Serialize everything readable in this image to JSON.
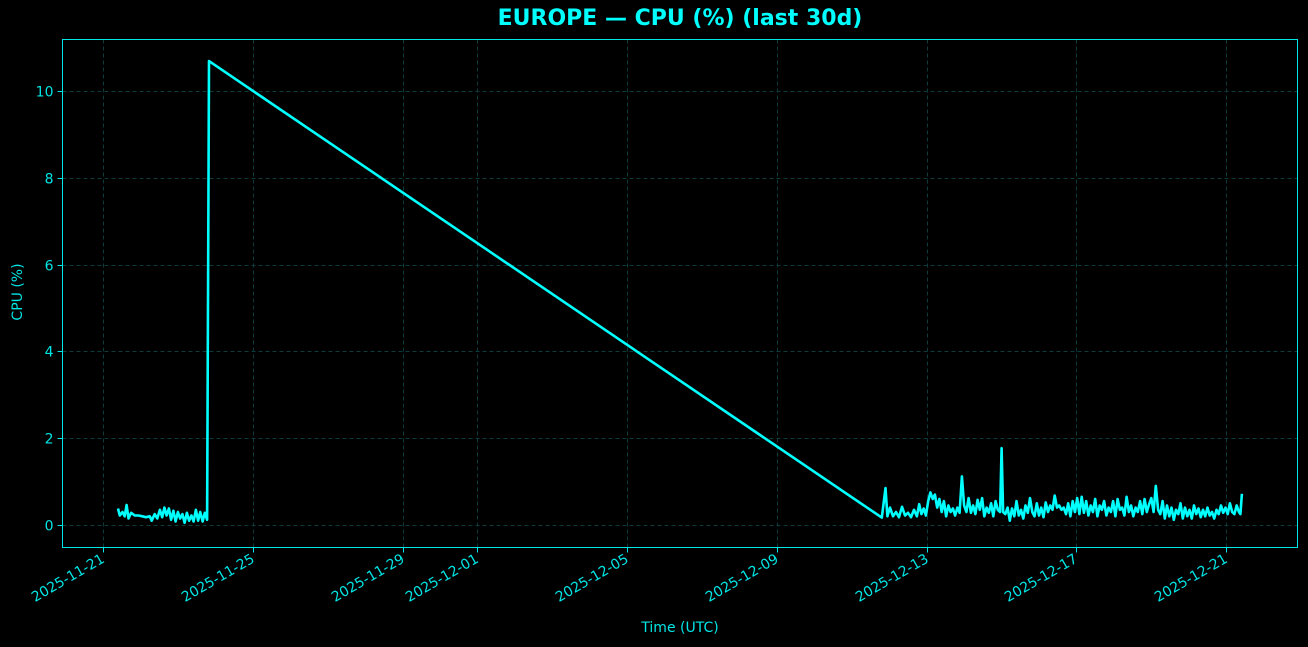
{
  "title": "EUROPE — CPU (%) (last 30d)",
  "colors": {
    "background": "#000000",
    "line": "#00ffff",
    "axis": "#00e5e5",
    "grid": "#0b3b3b"
  },
  "chart_data": {
    "type": "line",
    "title": "EUROPE — CPU (%) (last 30d)",
    "xlabel": "Time (UTC)",
    "ylabel": "CPU (%)",
    "grid": true,
    "legend": null,
    "x_ticks": [
      "2025-11-21",
      "2025-11-25",
      "2025-11-29",
      "2025-12-01",
      "2025-12-05",
      "2025-12-09",
      "2025-12-13",
      "2025-12-17",
      "2025-12-21"
    ],
    "x_tick_offsets_days": [
      0,
      4,
      8,
      10,
      14,
      18,
      22,
      26,
      30
    ],
    "y_ticks": [
      0,
      2,
      4,
      6,
      8,
      10
    ],
    "ylim": [
      -0.5,
      11.2
    ],
    "xlim_days_from_2025-11-21": [
      -1.1,
      31.3
    ],
    "series": [
      {
        "name": "CPU (%)",
        "points_day_value": [
          [
            0.4,
            0.38
          ],
          [
            0.45,
            0.22
          ],
          [
            0.52,
            0.3
          ],
          [
            0.58,
            0.2
          ],
          [
            0.63,
            0.46
          ],
          [
            0.68,
            0.15
          ],
          [
            0.75,
            0.28
          ],
          [
            0.85,
            0.22
          ],
          [
            0.95,
            0.22
          ],
          [
            1.05,
            0.2
          ],
          [
            1.15,
            0.18
          ],
          [
            1.25,
            0.2
          ],
          [
            1.3,
            0.1
          ],
          [
            1.38,
            0.25
          ],
          [
            1.45,
            0.15
          ],
          [
            1.52,
            0.35
          ],
          [
            1.58,
            0.18
          ],
          [
            1.64,
            0.4
          ],
          [
            1.7,
            0.22
          ],
          [
            1.76,
            0.38
          ],
          [
            1.82,
            0.12
          ],
          [
            1.88,
            0.33
          ],
          [
            1.94,
            0.08
          ],
          [
            2.0,
            0.3
          ],
          [
            2.06,
            0.15
          ],
          [
            2.12,
            0.25
          ],
          [
            2.18,
            0.05
          ],
          [
            2.24,
            0.28
          ],
          [
            2.3,
            0.1
          ],
          [
            2.36,
            0.22
          ],
          [
            2.42,
            0.08
          ],
          [
            2.48,
            0.35
          ],
          [
            2.54,
            0.1
          ],
          [
            2.6,
            0.3
          ],
          [
            2.66,
            0.08
          ],
          [
            2.72,
            0.28
          ],
          [
            2.78,
            0.12
          ],
          [
            2.83,
            10.69
          ],
          [
            20.8,
            0.17
          ],
          [
            20.9,
            0.85
          ],
          [
            20.95,
            0.2
          ],
          [
            21.02,
            0.4
          ],
          [
            21.1,
            0.2
          ],
          [
            21.18,
            0.3
          ],
          [
            21.26,
            0.18
          ],
          [
            21.34,
            0.42
          ],
          [
            21.42,
            0.22
          ],
          [
            21.5,
            0.28
          ],
          [
            21.58,
            0.18
          ],
          [
            21.66,
            0.35
          ],
          [
            21.74,
            0.2
          ],
          [
            21.8,
            0.48
          ],
          [
            21.86,
            0.25
          ],
          [
            21.92,
            0.38
          ],
          [
            21.98,
            0.22
          ],
          [
            22.04,
            0.55
          ],
          [
            22.1,
            0.75
          ],
          [
            22.16,
            0.6
          ],
          [
            22.22,
            0.7
          ],
          [
            22.28,
            0.4
          ],
          [
            22.34,
            0.6
          ],
          [
            22.4,
            0.3
          ],
          [
            22.46,
            0.55
          ],
          [
            22.52,
            0.2
          ],
          [
            22.58,
            0.45
          ],
          [
            22.64,
            0.3
          ],
          [
            22.7,
            0.38
          ],
          [
            22.76,
            0.22
          ],
          [
            22.82,
            0.4
          ],
          [
            22.88,
            0.28
          ],
          [
            22.94,
            1.12
          ],
          [
            23.0,
            0.45
          ],
          [
            23.06,
            0.3
          ],
          [
            23.12,
            0.62
          ],
          [
            23.18,
            0.28
          ],
          [
            23.24,
            0.45
          ],
          [
            23.3,
            0.25
          ],
          [
            23.36,
            0.58
          ],
          [
            23.42,
            0.35
          ],
          [
            23.48,
            0.62
          ],
          [
            23.54,
            0.2
          ],
          [
            23.6,
            0.4
          ],
          [
            23.66,
            0.28
          ],
          [
            23.72,
            0.5
          ],
          [
            23.78,
            0.2
          ],
          [
            23.84,
            0.55
          ],
          [
            23.9,
            0.35
          ],
          [
            23.96,
            0.3
          ],
          [
            24.0,
            1.77
          ],
          [
            24.04,
            0.3
          ],
          [
            24.1,
            0.25
          ],
          [
            24.16,
            0.4
          ],
          [
            24.22,
            0.1
          ],
          [
            24.28,
            0.38
          ],
          [
            24.34,
            0.2
          ],
          [
            24.4,
            0.55
          ],
          [
            24.46,
            0.22
          ],
          [
            24.52,
            0.35
          ],
          [
            24.58,
            0.15
          ],
          [
            24.64,
            0.45
          ],
          [
            24.7,
            0.28
          ],
          [
            24.76,
            0.62
          ],
          [
            24.82,
            0.3
          ],
          [
            24.88,
            0.2
          ],
          [
            24.94,
            0.5
          ],
          [
            25.0,
            0.22
          ],
          [
            25.06,
            0.4
          ],
          [
            25.12,
            0.18
          ],
          [
            25.18,
            0.52
          ],
          [
            25.24,
            0.3
          ],
          [
            25.3,
            0.45
          ],
          [
            25.36,
            0.35
          ],
          [
            25.42,
            0.68
          ],
          [
            25.48,
            0.4
          ],
          [
            25.54,
            0.45
          ],
          [
            25.6,
            0.35
          ],
          [
            25.66,
            0.4
          ],
          [
            25.72,
            0.25
          ],
          [
            25.78,
            0.5
          ],
          [
            25.84,
            0.2
          ],
          [
            25.9,
            0.55
          ],
          [
            25.96,
            0.3
          ],
          [
            26.02,
            0.62
          ],
          [
            26.08,
            0.25
          ],
          [
            26.14,
            0.65
          ],
          [
            26.2,
            0.28
          ],
          [
            26.26,
            0.55
          ],
          [
            26.32,
            0.22
          ],
          [
            26.38,
            0.45
          ],
          [
            26.44,
            0.3
          ],
          [
            26.5,
            0.6
          ],
          [
            26.56,
            0.2
          ],
          [
            26.62,
            0.45
          ],
          [
            26.68,
            0.35
          ],
          [
            26.74,
            0.55
          ],
          [
            26.8,
            0.22
          ],
          [
            26.86,
            0.4
          ],
          [
            26.92,
            0.3
          ],
          [
            26.98,
            0.55
          ],
          [
            27.04,
            0.2
          ],
          [
            27.1,
            0.6
          ],
          [
            27.16,
            0.35
          ],
          [
            27.22,
            0.4
          ],
          [
            27.28,
            0.22
          ],
          [
            27.34,
            0.65
          ],
          [
            27.4,
            0.3
          ],
          [
            27.46,
            0.45
          ],
          [
            27.52,
            0.2
          ],
          [
            27.58,
            0.4
          ],
          [
            27.64,
            0.3
          ],
          [
            27.7,
            0.55
          ],
          [
            27.76,
            0.25
          ],
          [
            27.82,
            0.6
          ],
          [
            27.88,
            0.3
          ],
          [
            27.94,
            0.48
          ],
          [
            28.0,
            0.62
          ],
          [
            28.06,
            0.3
          ],
          [
            28.12,
            0.9
          ],
          [
            28.18,
            0.35
          ],
          [
            28.24,
            0.25
          ],
          [
            28.3,
            0.55
          ],
          [
            28.36,
            0.15
          ],
          [
            28.42,
            0.45
          ],
          [
            28.48,
            0.2
          ],
          [
            28.54,
            0.4
          ],
          [
            28.6,
            0.12
          ],
          [
            28.66,
            0.35
          ],
          [
            28.72,
            0.25
          ],
          [
            28.78,
            0.5
          ],
          [
            28.84,
            0.15
          ],
          [
            28.9,
            0.4
          ],
          [
            28.96,
            0.2
          ],
          [
            29.02,
            0.35
          ],
          [
            29.08,
            0.15
          ],
          [
            29.14,
            0.45
          ],
          [
            29.2,
            0.25
          ],
          [
            29.26,
            0.38
          ],
          [
            29.32,
            0.18
          ],
          [
            29.38,
            0.35
          ],
          [
            29.44,
            0.2
          ],
          [
            29.5,
            0.4
          ],
          [
            29.56,
            0.22
          ],
          [
            29.62,
            0.3
          ],
          [
            29.68,
            0.15
          ],
          [
            29.74,
            0.35
          ],
          [
            29.8,
            0.25
          ],
          [
            29.86,
            0.45
          ],
          [
            29.92,
            0.28
          ],
          [
            29.98,
            0.4
          ],
          [
            30.04,
            0.25
          ],
          [
            30.1,
            0.5
          ],
          [
            30.16,
            0.3
          ],
          [
            30.22,
            0.25
          ],
          [
            30.28,
            0.45
          ],
          [
            30.34,
            0.3
          ],
          [
            30.38,
            0.25
          ],
          [
            30.42,
            0.72
          ]
        ]
      }
    ]
  }
}
